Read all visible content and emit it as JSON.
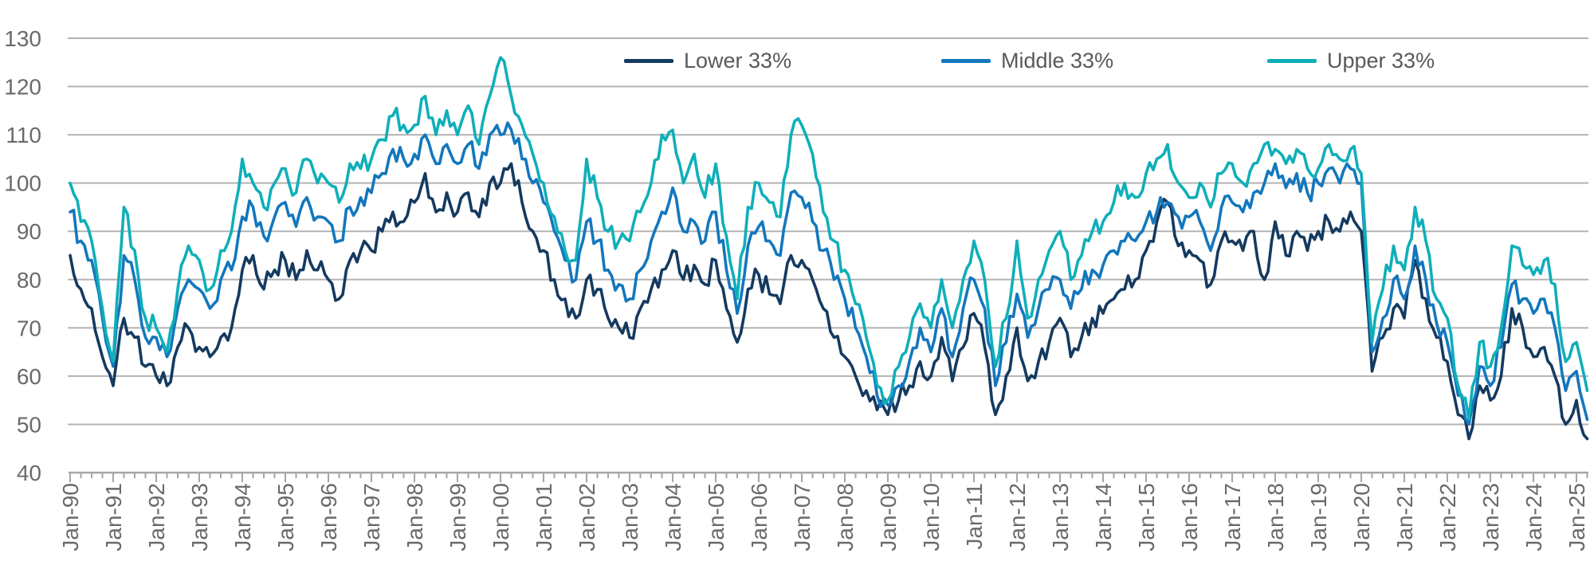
{
  "page": {
    "background": "#ffffff"
  },
  "chart_data": {
    "type": "line",
    "title": "",
    "grid": "horizontal",
    "legend_position": "top-center",
    "x_start_year": 1990,
    "points_per_year": 4,
    "x_axis": {
      "tick_labels": [
        "Jan-90",
        "Jan-91",
        "Jan-92",
        "Jan-93",
        "Jan-94",
        "Jan-95",
        "Jan-96",
        "Jan-97",
        "Jan-98",
        "Jan-99",
        "Jan-00",
        "Jan-01",
        "Jan-02",
        "Jan-03",
        "Jan-04",
        "Jan-05",
        "Jan-06",
        "Jan-07",
        "Jan-08",
        "Jan-09",
        "Jan-10",
        "Jan-11",
        "Jan-12",
        "Jan-13",
        "Jan-14",
        "Jan-15",
        "Jan-16",
        "Jan-17",
        "Jan-18",
        "Jan-19",
        "Jan-20",
        "Jan-21",
        "Jan-22",
        "Jan-23",
        "Jan-24",
        "Jan-25"
      ],
      "minor_ticks_per_year": 4
    },
    "y_axis": {
      "min": 40,
      "max": 130,
      "ticks": [
        40,
        50,
        60,
        70,
        80,
        90,
        100,
        110,
        120,
        130
      ]
    },
    "series": [
      {
        "name": "Lower 33%",
        "color": "#143A60",
        "values": [
          85,
          78,
          74,
          64,
          58,
          72,
          68,
          62,
          60,
          58,
          66,
          70,
          66,
          64,
          68,
          70,
          82,
          85,
          78,
          82,
          84,
          80,
          86,
          82,
          80,
          76,
          84,
          86,
          86,
          90,
          94,
          92,
          96,
          102,
          94,
          98,
          94,
          98,
          93,
          100,
          100,
          104,
          96,
          90,
          86,
          80,
          76,
          72,
          80,
          78,
          72,
          70,
          68,
          74,
          78,
          82,
          86,
          80,
          83,
          79,
          84,
          74,
          67,
          78,
          81,
          77,
          75,
          85,
          84,
          80,
          74,
          68,
          64,
          60,
          57,
          53,
          52,
          55,
          58,
          63,
          60,
          68,
          59,
          66,
          73,
          66,
          52,
          60,
          70,
          59,
          63,
          67,
          72,
          64,
          68,
          72,
          73,
          76,
          78,
          80,
          86,
          92,
          96,
          87,
          86,
          84,
          79,
          88,
          88,
          86,
          90,
          80,
          92,
          85,
          90,
          86,
          90,
          92,
          90,
          94,
          90,
          61,
          68,
          74,
          72,
          84,
          76,
          68,
          63,
          52,
          47,
          58,
          55,
          60,
          74,
          70,
          64,
          66,
          60,
          50,
          55,
          47
        ]
      },
      {
        "name": "Middle 33%",
        "color": "#1377BD",
        "values": [
          94,
          88,
          84,
          72,
          62,
          85,
          80,
          68,
          68,
          64,
          74,
          80,
          78,
          74,
          80,
          82,
          93,
          95,
          89,
          93,
          96,
          91,
          97,
          93,
          92,
          88,
          95,
          97,
          98,
          102,
          107,
          105,
          106,
          110,
          104,
          108,
          104,
          108,
          103,
          110,
          110,
          111,
          105,
          100,
          96,
          90,
          84,
          80,
          92,
          88,
          82,
          79,
          76,
          82,
          88,
          94,
          99,
          90,
          92,
          88,
          94,
          82,
          73,
          87,
          91,
          88,
          85,
          98,
          97,
          92,
          86,
          80,
          76,
          70,
          64,
          56,
          54,
          58,
          63,
          70,
          65,
          74,
          64,
          74,
          80,
          74,
          58,
          67,
          77,
          68,
          74,
          78,
          80,
          74,
          78,
          82,
          83,
          86,
          88,
          88,
          92,
          94,
          96,
          93,
          93,
          92,
          86,
          95,
          96,
          94,
          98,
          100,
          104,
          99,
          102,
          98,
          100,
          103,
          100,
          103,
          100,
          65,
          72,
          80,
          76,
          87,
          80,
          71,
          67,
          56,
          50,
          62,
          58,
          66,
          79,
          76,
          73,
          76,
          70,
          57,
          61,
          51
        ]
      },
      {
        "name": "Upper 33%",
        "color": "#0FAFB9",
        "values": [
          100,
          92,
          88,
          74,
          63,
          95,
          86,
          72,
          70,
          65,
          78,
          87,
          84,
          78,
          86,
          90,
          105,
          100,
          95,
          100,
          103,
          98,
          105,
          100,
          100,
          96,
          104,
          103,
          105,
          109,
          114,
          112,
          112,
          118,
          110,
          115,
          110,
          116,
          108,
          118,
          126,
          118,
          112,
          106,
          100,
          93,
          86,
          84,
          105,
          97,
          90,
          88,
          88,
          94,
          100,
          110,
          111,
          100,
          106,
          97,
          104,
          89,
          76,
          95,
          100,
          96,
          93,
          110,
          112,
          106,
          94,
          88,
          82,
          75,
          68,
          58,
          55,
          62,
          68,
          75,
          70,
          80,
          70,
          80,
          88,
          80,
          62,
          72,
          88,
          72,
          80,
          86,
          90,
          80,
          85,
          90,
          92,
          96,
          100,
          97,
          102,
          105,
          108,
          100,
          97,
          100,
          95,
          102,
          104,
          100,
          104,
          108,
          107,
          104,
          107,
          103,
          103,
          108,
          105,
          107,
          102,
          67,
          78,
          87,
          82,
          95,
          88,
          76,
          72,
          58,
          51,
          67,
          62,
          70,
          87,
          83,
          81,
          84,
          79,
          63,
          67,
          57
        ]
      }
    ]
  },
  "legend": {
    "items": [
      {
        "label": "Lower 33%"
      },
      {
        "label": "Middle 33%"
      },
      {
        "label": "Upper 33%"
      }
    ]
  },
  "styles": {
    "grid_color": "#b3b3b3",
    "axis_color": "#a6a6a6",
    "tick_label_color": "#6a6a6a",
    "legend_text_color": "#595959"
  }
}
